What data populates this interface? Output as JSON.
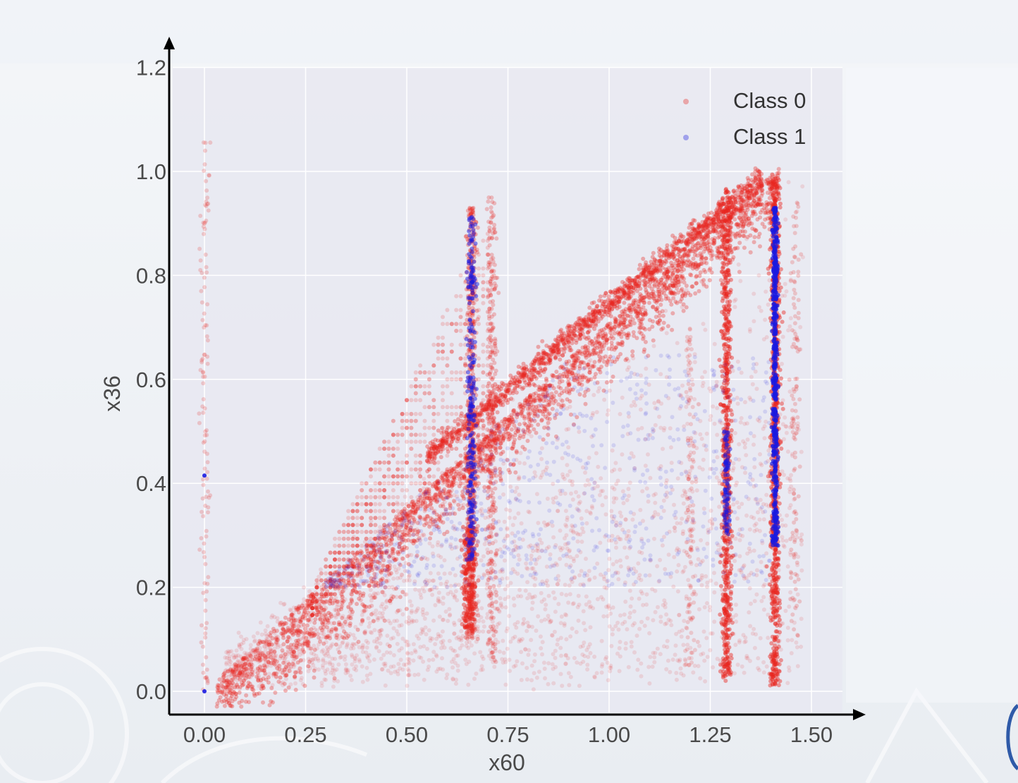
{
  "chart_data": {
    "type": "scatter",
    "title": "",
    "xlabel": "x60",
    "ylabel": "x36",
    "xlim": [
      -0.08,
      1.58
    ],
    "ylim": [
      -0.05,
      1.2
    ],
    "xticks": [
      "0.00",
      "0.25",
      "0.50",
      "0.75",
      "1.00",
      "1.25",
      "1.50"
    ],
    "xtick_values": [
      0.0,
      0.25,
      0.5,
      0.75,
      1.0,
      1.25,
      1.5
    ],
    "yticks": [
      "0.0",
      "0.2",
      "0.4",
      "0.6",
      "0.8",
      "1.0",
      "1.2"
    ],
    "ytick_values": [
      0.0,
      0.2,
      0.4,
      0.6,
      0.8,
      1.0,
      1.2
    ],
    "grid": true,
    "legend_position": "top-right",
    "series": [
      {
        "name": "Class 0",
        "color": "#e8251f",
        "structures": [
          {
            "kind": "band",
            "from": [
              0.03,
              0.0
            ],
            "to": [
              1.42,
              1.0
            ],
            "comment": "dense diagonal band"
          },
          {
            "kind": "band",
            "from": [
              0.55,
              0.45
            ],
            "to": [
              1.38,
              0.99
            ],
            "comment": "upper diagonal band"
          },
          {
            "kind": "vertical",
            "x": 0.66,
            "y_range": [
              0.1,
              0.93
            ]
          },
          {
            "kind": "vertical",
            "x": 0.71,
            "y_range": [
              0.05,
              0.95
            ]
          },
          {
            "kind": "vertical",
            "x": 1.29,
            "y_range": [
              0.02,
              0.97
            ]
          },
          {
            "kind": "vertical",
            "x": 1.41,
            "y_range": [
              0.01,
              0.99
            ]
          },
          {
            "kind": "vertical",
            "x": 0.0,
            "y_range": [
              0.0,
              1.08
            ]
          },
          {
            "kind": "region",
            "x_range": [
              0.0,
              1.48
            ],
            "y_below": "diagonal"
          },
          {
            "kind": "region",
            "x_range": [
              0.25,
              0.72
            ],
            "y_range": [
              0.3,
              0.93
            ]
          }
        ]
      },
      {
        "name": "Class 1",
        "color": "#1a1ae0",
        "structures": [
          {
            "kind": "vertical",
            "x": 1.41,
            "y_range": [
              0.28,
              0.93
            ]
          },
          {
            "kind": "vertical",
            "x": 0.66,
            "y_range": [
              0.25,
              0.92
            ]
          },
          {
            "kind": "vertical",
            "x": 1.29,
            "y_range": [
              0.3,
              0.5
            ]
          },
          {
            "kind": "point",
            "x": 0.0,
            "y": 0.415
          },
          {
            "kind": "point",
            "x": 0.0,
            "y": 0.0
          },
          {
            "kind": "region",
            "x_range": [
              0.3,
              1.4
            ],
            "y_range": [
              0.2,
              0.65
            ]
          }
        ]
      }
    ]
  }
}
